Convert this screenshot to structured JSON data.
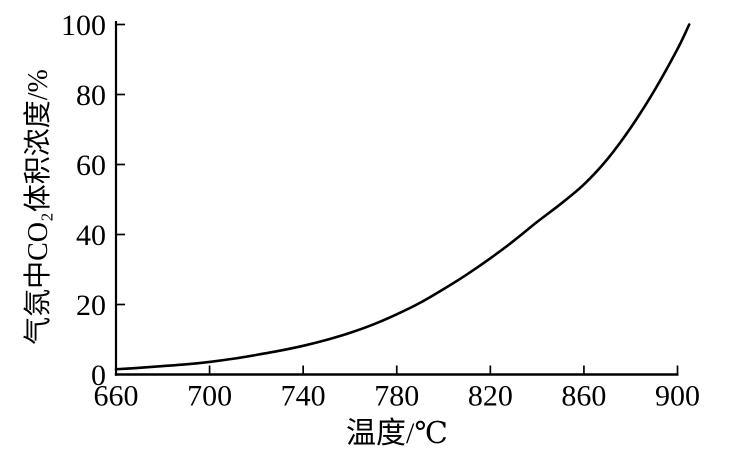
{
  "figure": {
    "background": "#ffffff",
    "ink": "#000000"
  },
  "chart_data": {
    "type": "line",
    "title": "",
    "xlabel": "温度/℃",
    "ylabel": "气氛中CO₂体积浓度/%",
    "x_ticks": [
      660,
      700,
      740,
      780,
      820,
      860,
      900
    ],
    "x_tick_labels": [
      "660",
      "700",
      "740",
      "780",
      "820",
      "860",
      "900"
    ],
    "y_ticks": [
      0,
      20,
      40,
      60,
      80,
      100
    ],
    "y_tick_labels": [
      "0",
      "20",
      "40",
      "60",
      "80",
      "100"
    ],
    "xlim": [
      660,
      905
    ],
    "ylim": [
      0,
      100
    ],
    "grid": false,
    "legend": false,
    "series": [
      {
        "name": "气氛中CO₂体积浓度",
        "color": "#000000",
        "line_width": 2.6,
        "x": [
          660,
          670,
          680,
          690,
          700,
          710,
          720,
          730,
          740,
          750,
          760,
          770,
          780,
          790,
          800,
          810,
          820,
          830,
          840,
          850,
          860,
          870,
          880,
          890,
          900,
          905
        ],
        "y": [
          1.5,
          1.9,
          2.4,
          2.9,
          3.6,
          4.5,
          5.6,
          6.8,
          8.2,
          9.9,
          11.9,
          14.3,
          17.2,
          20.5,
          24.4,
          28.6,
          33.2,
          38.2,
          43.6,
          48.7,
          54.3,
          61.5,
          70.5,
          81,
          93,
          100
        ]
      }
    ]
  }
}
